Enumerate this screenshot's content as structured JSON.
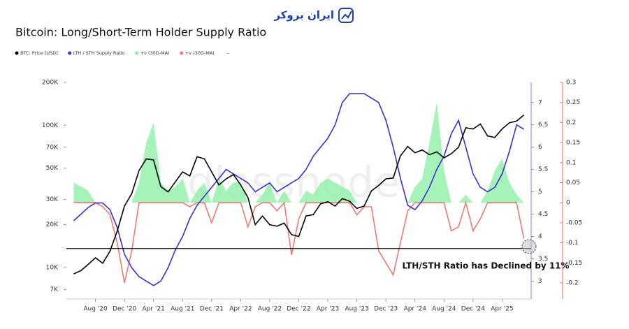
{
  "logo": "ایران بروکر",
  "chart_data": {
    "type": "line",
    "title": "Bitcoin: Long/Short-Term Holder Supply Ratio",
    "watermark": "glassnode",
    "annotation": "LTH/STH Ratio has Declined by 11%",
    "legend_extra": "--",
    "x": [
      "2020-05",
      "2020-06",
      "2020-07",
      "2020-08",
      "2020-09",
      "2020-10",
      "2020-11",
      "2020-12",
      "2021-01",
      "2021-02",
      "2021-03",
      "2021-04",
      "2021-05",
      "2021-06",
      "2021-07",
      "2021-08",
      "2021-09",
      "2021-10",
      "2021-11",
      "2021-12",
      "2022-01",
      "2022-02",
      "2022-03",
      "2022-04",
      "2022-05",
      "2022-06",
      "2022-07",
      "2022-08",
      "2022-09",
      "2022-10",
      "2022-11",
      "2022-12",
      "2023-01",
      "2023-02",
      "2023-03",
      "2023-04",
      "2023-05",
      "2023-06",
      "2023-07",
      "2023-08",
      "2023-09",
      "2023-10",
      "2023-11",
      "2023-12",
      "2024-01",
      "2024-02",
      "2024-03",
      "2024-04",
      "2024-05",
      "2024-06",
      "2024-07",
      "2024-08",
      "2024-09",
      "2024-10",
      "2024-11",
      "2024-12",
      "2025-01",
      "2025-02",
      "2025-03",
      "2025-04",
      "2025-05",
      "2025-06",
      "2025-07"
    ],
    "xlim": [
      "2020-04",
      "2025-08"
    ],
    "xticks": [
      {
        "value": "2020-08",
        "label": "Aug '20"
      },
      {
        "value": "2020-12",
        "label": "Dec '20"
      },
      {
        "value": "2021-04",
        "label": "Apr '21"
      },
      {
        "value": "2021-08",
        "label": "Aug '21"
      },
      {
        "value": "2021-12",
        "label": "Dec '21"
      },
      {
        "value": "2022-04",
        "label": "Apr '22"
      },
      {
        "value": "2022-08",
        "label": "Aug '22"
      },
      {
        "value": "2022-12",
        "label": "Dec '22"
      },
      {
        "value": "2023-04",
        "label": "Apr '23"
      },
      {
        "value": "2023-08",
        "label": "Aug '23"
      },
      {
        "value": "2023-12",
        "label": "Dec '23"
      },
      {
        "value": "2024-04",
        "label": "Apr '24"
      },
      {
        "value": "2024-08",
        "label": "Aug '24"
      },
      {
        "value": "2024-12",
        "label": "Dec '24"
      },
      {
        "value": "2025-04",
        "label": "Apr '25"
      }
    ],
    "ylog": true,
    "ylim": [
      6000,
      200000
    ],
    "yticks": [
      {
        "value": 7000,
        "label": "7K"
      },
      {
        "value": 10000,
        "label": "10K"
      },
      {
        "value": 20000,
        "label": "20K"
      },
      {
        "value": 30000,
        "label": "30K"
      },
      {
        "value": 50000,
        "label": "50K"
      },
      {
        "value": 70000,
        "label": "70K"
      },
      {
        "value": 100000,
        "label": "100K"
      },
      {
        "value": 200000,
        "label": "200K"
      }
    ],
    "y2lim": [
      2.6,
      7.45
    ],
    "y2ticks": [
      3,
      3.5,
      4,
      4.5,
      5,
      5.5,
      6,
      6.5,
      7
    ],
    "y3lim": [
      -0.24,
      0.3
    ],
    "y3ticks": [
      -0.2,
      -0.15,
      -0.1,
      -0.05,
      0,
      0.05,
      0.1,
      0.15,
      0.2,
      0.25,
      0.3
    ],
    "y2_axis_color": "#8a7fe0",
    "y3_axis_color": "#e8706a",
    "reference_line": {
      "axis": "y2",
      "value": 3.73,
      "color": "#000000"
    },
    "grid": false,
    "series": [
      {
        "name": "+v (30D-MA)",
        "color": "#8ef0a8",
        "axis": "y3",
        "style": "area",
        "values": [
          0.05,
          0.04,
          0.03,
          0,
          0,
          0,
          0,
          0,
          0,
          0.05,
          0.15,
          0.2,
          0.05,
          0.03,
          0.04,
          0.06,
          0,
          0.03,
          0.05,
          0,
          0.06,
          0.03,
          0.05,
          0.05,
          0,
          0,
          0.02,
          0.05,
          0,
          0.03,
          0,
          0,
          0.03,
          0.02,
          0.05,
          0.06,
          0.05,
          0.04,
          0.03,
          0,
          0,
          0,
          0,
          0,
          0,
          0,
          0,
          0.04,
          0.06,
          0.15,
          0.25,
          0.08,
          0,
          0,
          0.02,
          0,
          0,
          0.03,
          0.08,
          0.11,
          0.05,
          0.02,
          0
        ]
      },
      {
        "name": "+v (30D-MA)",
        "color": "#f07a72",
        "axis": "y3",
        "style": "line",
        "values": [
          0,
          0,
          0,
          0,
          -0.01,
          -0.03,
          -0.1,
          -0.2,
          -0.12,
          0,
          0,
          0,
          0,
          0,
          0,
          0,
          -0.01,
          0,
          0,
          -0.05,
          0,
          0,
          0,
          0,
          -0.06,
          -0.01,
          0,
          0,
          -0.02,
          0,
          -0.13,
          -0.04,
          0,
          0,
          0,
          0,
          0,
          0,
          0,
          -0.03,
          -0.01,
          -0.01,
          -0.12,
          -0.15,
          -0.18,
          -0.1,
          -0.02,
          0,
          0,
          0,
          0,
          0,
          -0.07,
          -0.06,
          0,
          -0.07,
          -0.04,
          0,
          0,
          0,
          0,
          0,
          -0.09
        ]
      },
      {
        "name": "LTH / STH Supply Ratio",
        "color": "#3a2fd6",
        "axis": "y2",
        "style": "line",
        "values": [
          4.35,
          4.5,
          4.65,
          4.75,
          4.75,
          4.6,
          4.2,
          3.6,
          3.3,
          3.1,
          3.0,
          2.9,
          3.0,
          3.3,
          3.7,
          4.0,
          4.4,
          4.7,
          4.9,
          5.1,
          5.3,
          5.5,
          5.4,
          5.3,
          5.2,
          5.0,
          5.1,
          5.2,
          5.0,
          5.1,
          5.2,
          5.3,
          5.5,
          5.8,
          6.0,
          6.2,
          6.5,
          7.0,
          7.2,
          7.2,
          7.2,
          7.1,
          7.0,
          6.6,
          6.0,
          5.3,
          4.7,
          4.6,
          4.8,
          5.1,
          5.5,
          5.8,
          6.3,
          6.6,
          6.0,
          5.4,
          5.1,
          5.0,
          5.1,
          5.4,
          5.9,
          6.5,
          6.4
        ]
      },
      {
        "name": "BTC: Price [USD]",
        "color": "#000000",
        "axis": "y",
        "style": "line",
        "values": [
          9000,
          9500,
          10500,
          11700,
          10700,
          13000,
          18000,
          27000,
          33000,
          48000,
          58000,
          57000,
          37000,
          34000,
          40000,
          47000,
          44000,
          60000,
          58000,
          47000,
          38000,
          42000,
          45000,
          38000,
          31000,
          20000,
          23000,
          20000,
          19500,
          20500,
          17000,
          16500,
          23000,
          23500,
          28000,
          29000,
          27000,
          30500,
          29200,
          26000,
          27000,
          34500,
          37700,
          42000,
          42500,
          61000,
          71000,
          64000,
          67000,
          62000,
          65000,
          59000,
          63000,
          70000,
          96000,
          94000,
          102000,
          84000,
          82000,
          94000,
          104000,
          107000,
          118000
        ]
      }
    ]
  }
}
